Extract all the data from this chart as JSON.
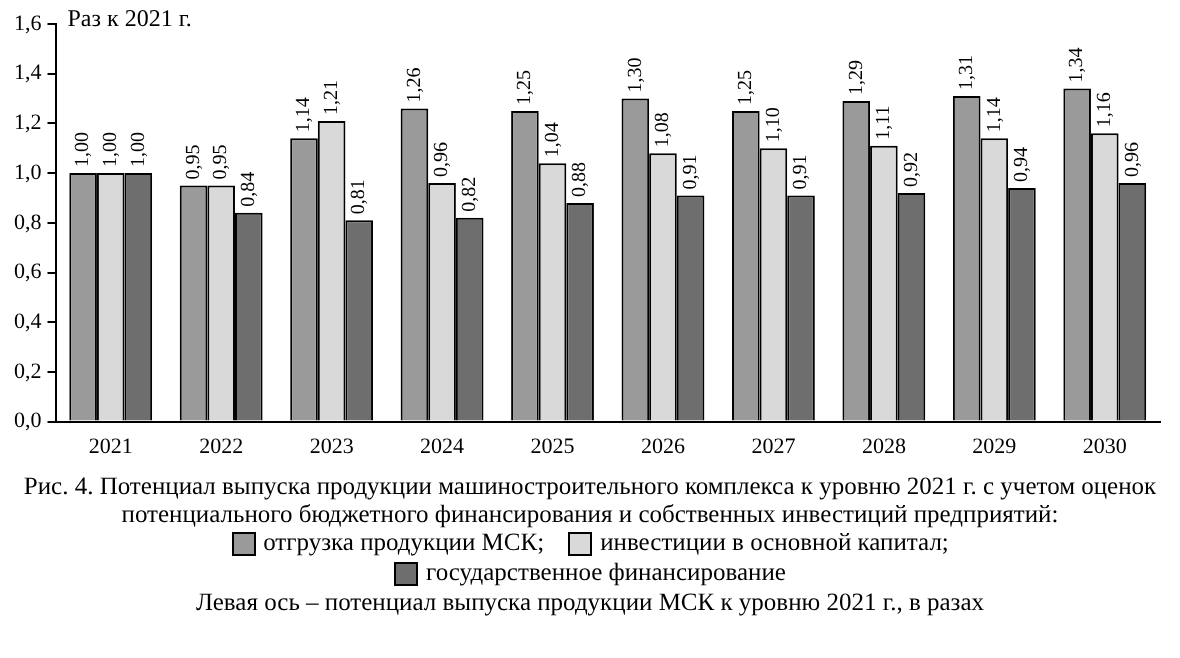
{
  "chart_data": {
    "type": "bar",
    "title": "Рис. 4. Потенциал выпуска продукции машиностроительного комплекса к уровню 2021 г. с учетом оценок потенциального бюджетного финансирования и собственных инвестиций предприятий:",
    "ylabel": "Раз к 2021 г.",
    "categories": [
      "2021",
      "2022",
      "2023",
      "2024",
      "2025",
      "2026",
      "2027",
      "2028",
      "2029",
      "2030"
    ],
    "series": [
      {
        "name": "отгрузка продукции МСК;",
        "color": "#9a9a9a",
        "values": [
          1.0,
          0.95,
          1.14,
          1.26,
          1.25,
          1.3,
          1.25,
          1.29,
          1.31,
          1.34
        ],
        "value_labels": [
          "1,00",
          "0,95",
          "1,14",
          "1,26",
          "1,25",
          "1,30",
          "1,25",
          "1,29",
          "1,31",
          "1,34"
        ]
      },
      {
        "name": "инвестиции в основной капитал;",
        "color": "#d9d9d9",
        "values": [
          1.0,
          0.95,
          1.21,
          0.96,
          1.04,
          1.08,
          1.1,
          1.11,
          1.14,
          1.16
        ],
        "value_labels": [
          "1,00",
          "0,95",
          "1,21",
          "0,96",
          "1,04",
          "1,08",
          "1,10",
          "1,11",
          "1,14",
          "1,16"
        ]
      },
      {
        "name": "государственное финансирование",
        "color": "#6e6e6e",
        "values": [
          1.0,
          0.84,
          0.81,
          0.82,
          0.88,
          0.91,
          0.91,
          0.92,
          0.94,
          0.96
        ],
        "value_labels": [
          "1,00",
          "0,84",
          "0,81",
          "0,82",
          "0,88",
          "0,91",
          "0,91",
          "0,92",
          "0,94",
          "0,96"
        ]
      }
    ],
    "ylim": [
      0,
      1.6
    ],
    "yticks": [
      {
        "value": 0,
        "label": "0,0"
      },
      {
        "value": 0.2,
        "label": "0,2"
      },
      {
        "value": 0.4,
        "label": "0,4"
      },
      {
        "value": 0.6,
        "label": "0,6"
      },
      {
        "value": 0.8,
        "label": "0,8"
      },
      {
        "value": 1.0,
        "label": "1,0"
      },
      {
        "value": 1.2,
        "label": "1,2"
      },
      {
        "value": 1.4,
        "label": "1,4"
      },
      {
        "value": 1.6,
        "label": "1,6"
      }
    ],
    "grid": false,
    "legend": "bottom",
    "annotations": [
      "Левая ось – потенциал выпуска продукции МСК к уровню 2021 г., в разах"
    ]
  }
}
